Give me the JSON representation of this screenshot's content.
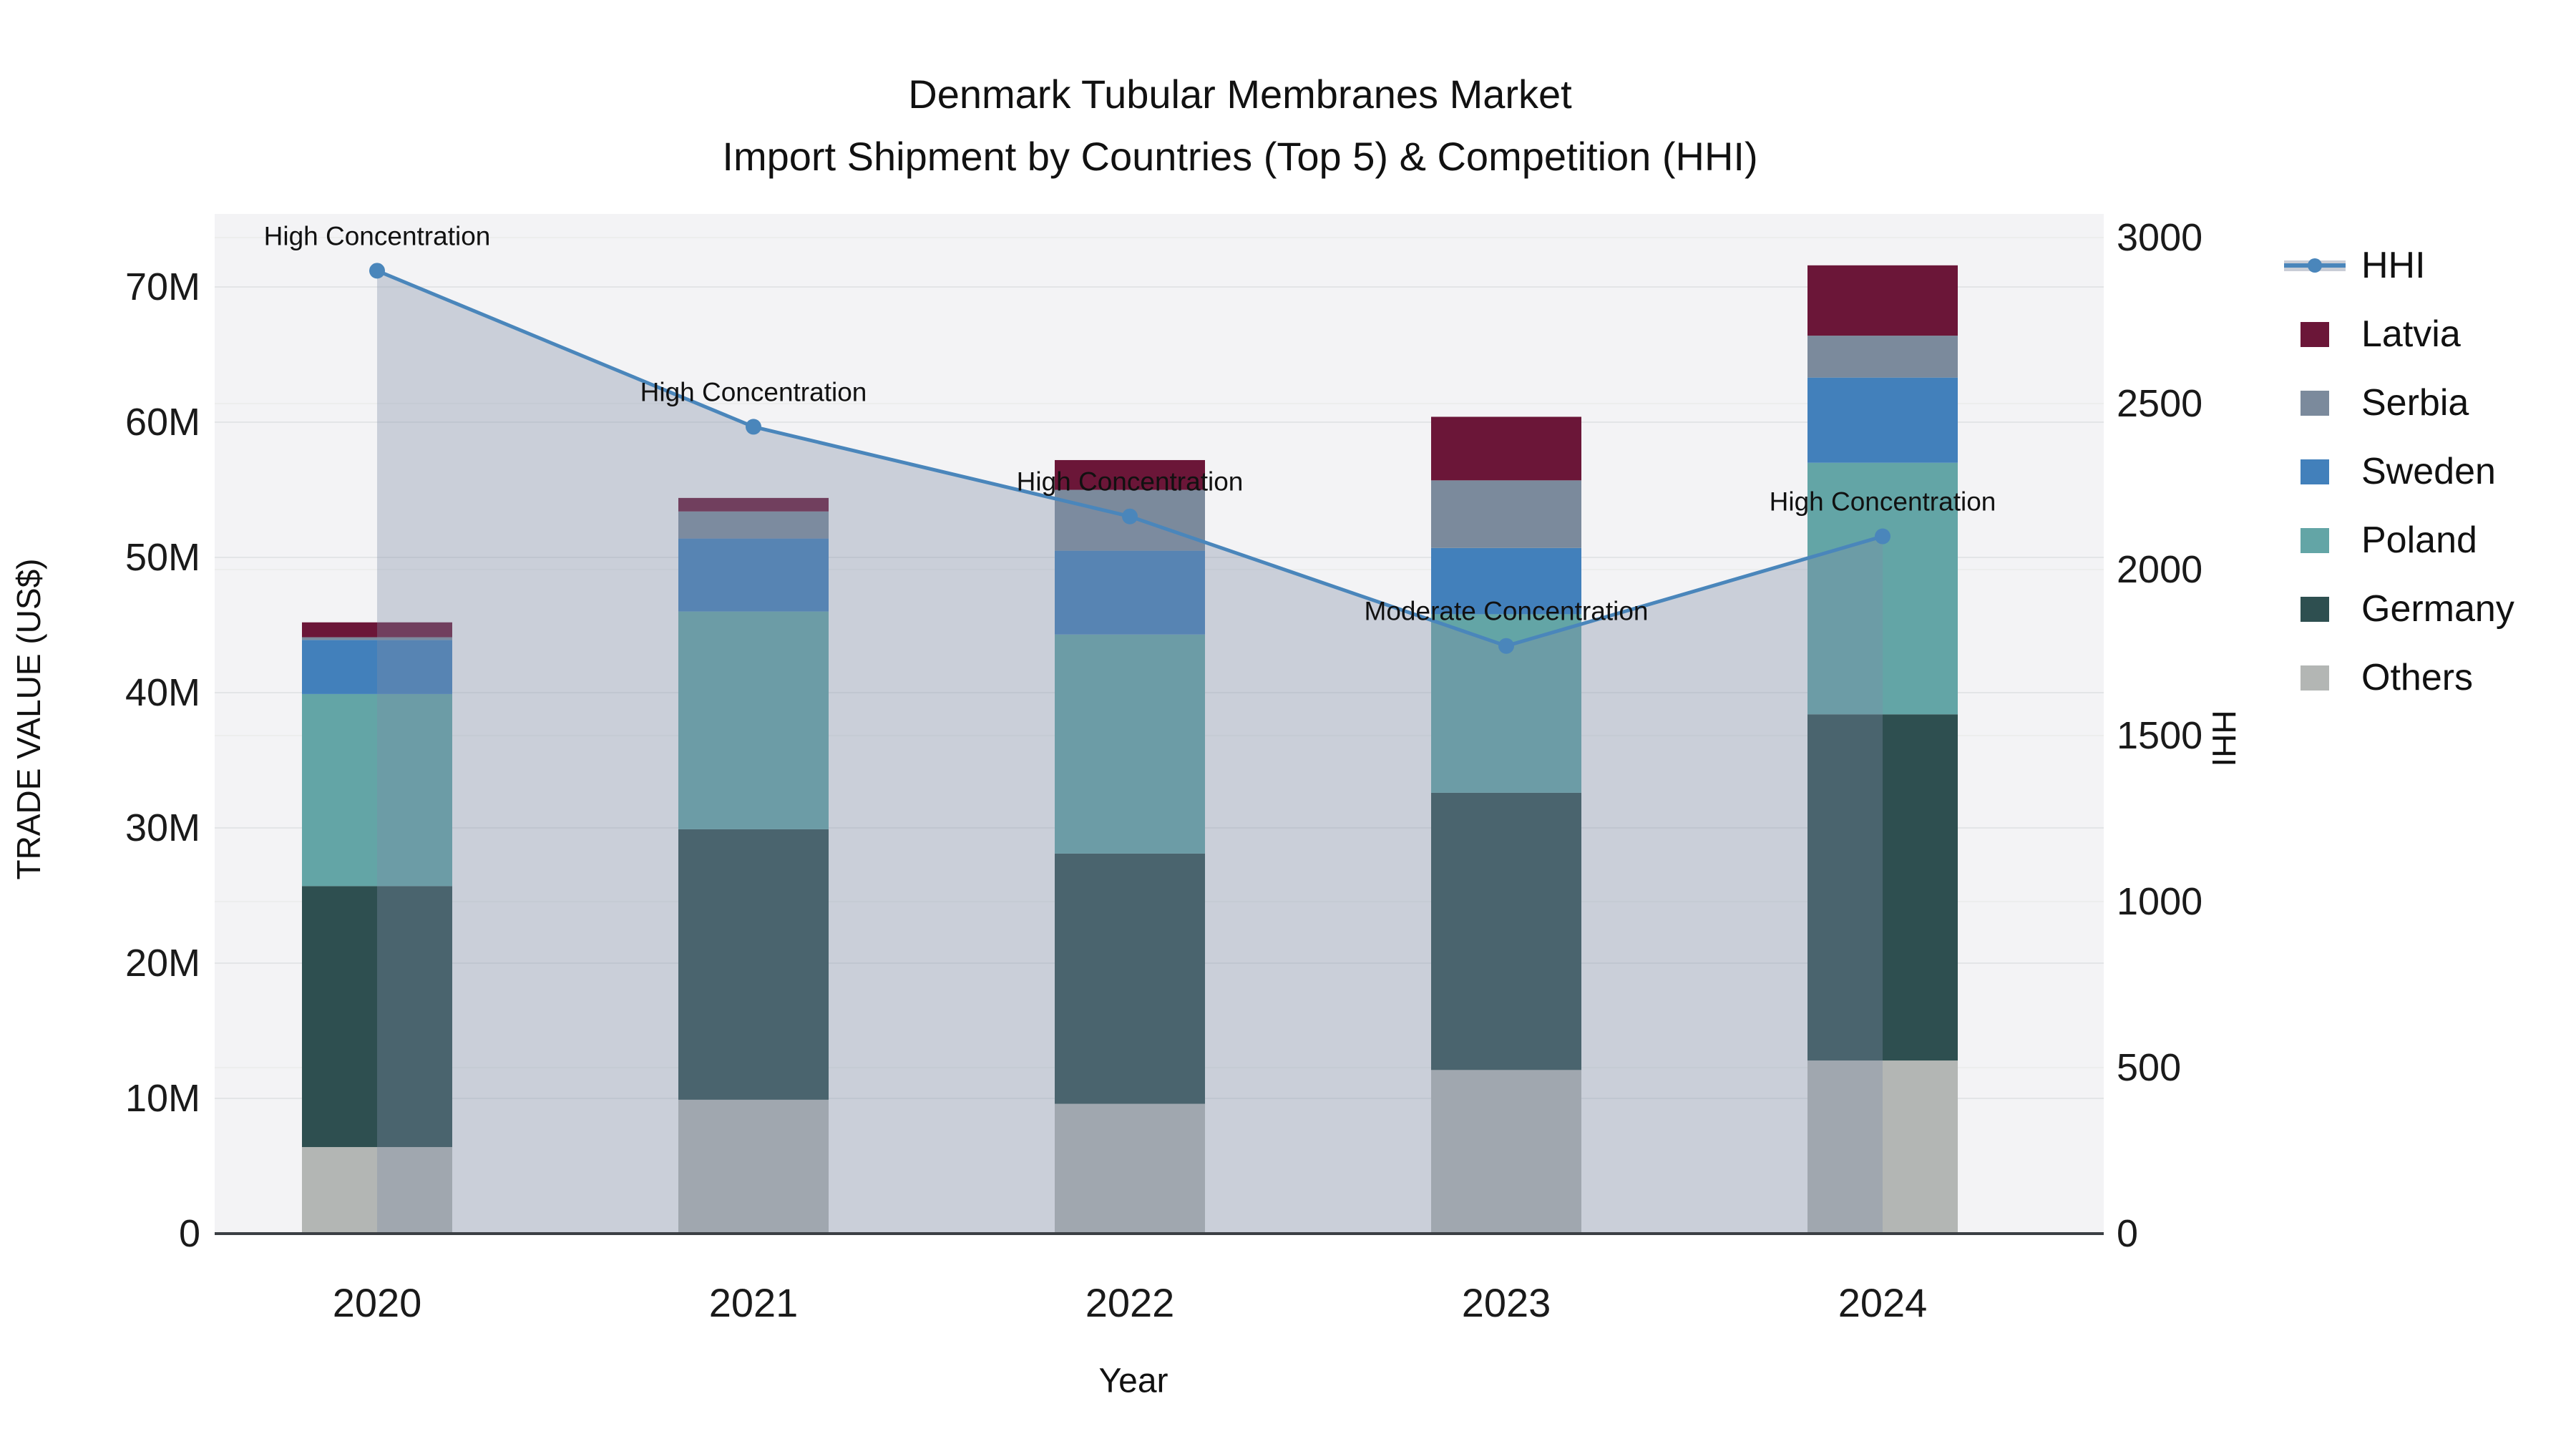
{
  "title": {
    "line1": "Denmark Tubular Membranes Market",
    "line2": "Import Shipment by Countries (Top 5) & Competition (HHI)"
  },
  "axes": {
    "x_title": "Year",
    "y_left_title": "TRADE VALUE (US$)",
    "y_right_title": "HHI",
    "y_left_range": [
      0,
      75.4
    ],
    "y_right_range": [
      0,
      3071
    ],
    "y_left_ticks": [
      {
        "v": 0,
        "label": "0"
      },
      {
        "v": 10,
        "label": "10M"
      },
      {
        "v": 20,
        "label": "20M"
      },
      {
        "v": 30,
        "label": "30M"
      },
      {
        "v": 40,
        "label": "40M"
      },
      {
        "v": 50,
        "label": "50M"
      },
      {
        "v": 60,
        "label": "60M"
      },
      {
        "v": 70,
        "label": "70M"
      }
    ],
    "y_right_ticks": [
      {
        "v": 0,
        "label": "0"
      },
      {
        "v": 500,
        "label": "500"
      },
      {
        "v": 1000,
        "label": "1000"
      },
      {
        "v": 1500,
        "label": "1500"
      },
      {
        "v": 2000,
        "label": "2000"
      },
      {
        "v": 2500,
        "label": "2500"
      },
      {
        "v": 3000,
        "label": "3000"
      }
    ]
  },
  "chart_data": {
    "type": "bar+line",
    "bar_unit": "million US$ trade value, stacked by country",
    "categories": [
      "2020",
      "2021",
      "2022",
      "2023",
      "2024"
    ],
    "series": [
      {
        "name": "Others",
        "color": "#b3b6b4",
        "values": [
          6.4,
          9.9,
          9.6,
          12.1,
          12.8
        ]
      },
      {
        "name": "Germany",
        "color": "#2e4f50",
        "values": [
          19.3,
          20.0,
          18.5,
          20.5,
          25.6
        ]
      },
      {
        "name": "Poland",
        "color": "#63a5a6",
        "values": [
          14.2,
          16.1,
          16.2,
          13.2,
          18.6
        ]
      },
      {
        "name": "Sweden",
        "color": "#4280bb",
        "values": [
          4.0,
          5.4,
          6.2,
          4.9,
          6.3
        ]
      },
      {
        "name": "Serbia",
        "color": "#7b8a9c",
        "values": [
          0.2,
          2.0,
          4.5,
          5.0,
          3.1
        ]
      },
      {
        "name": "Latvia",
        "color": "#6b1638",
        "values": [
          1.1,
          1.0,
          2.2,
          4.7,
          5.2
        ]
      }
    ],
    "totals": [
      45.2,
      54.4,
      57.2,
      60.4,
      71.6
    ],
    "hhi_line": {
      "name": "HHI",
      "values": [
        2900,
        2430,
        2160,
        1770,
        2100
      ],
      "line_color": "#4a86bb",
      "marker_color": "#4a86bb",
      "area_color": "rgba(125,140,167,0.35)"
    },
    "annotations": [
      "High Concentration",
      "High Concentration",
      "High Concentration",
      "Moderate Concentration",
      "High Concentration"
    ],
    "legend_position": "right",
    "grid": true
  },
  "legend": {
    "items": [
      {
        "label": "HHI",
        "type": "line",
        "color": "#4a86bb"
      },
      {
        "label": "Latvia",
        "type": "swatch",
        "color": "#6b1638"
      },
      {
        "label": "Serbia",
        "type": "swatch",
        "color": "#7b8a9c"
      },
      {
        "label": "Sweden",
        "type": "swatch",
        "color": "#4280bb"
      },
      {
        "label": "Poland",
        "type": "swatch",
        "color": "#63a5a6"
      },
      {
        "label": "Germany",
        "type": "swatch",
        "color": "#2e4f50"
      },
      {
        "label": "Others",
        "type": "swatch",
        "color": "#b3b6b4"
      }
    ]
  },
  "colors": {
    "plot_bg": "#f3f3f5",
    "grid_left": "#e3e5e7",
    "grid_right": "#eceded",
    "axis_line": "#3b3f44",
    "text": "#1a1a1a"
  }
}
